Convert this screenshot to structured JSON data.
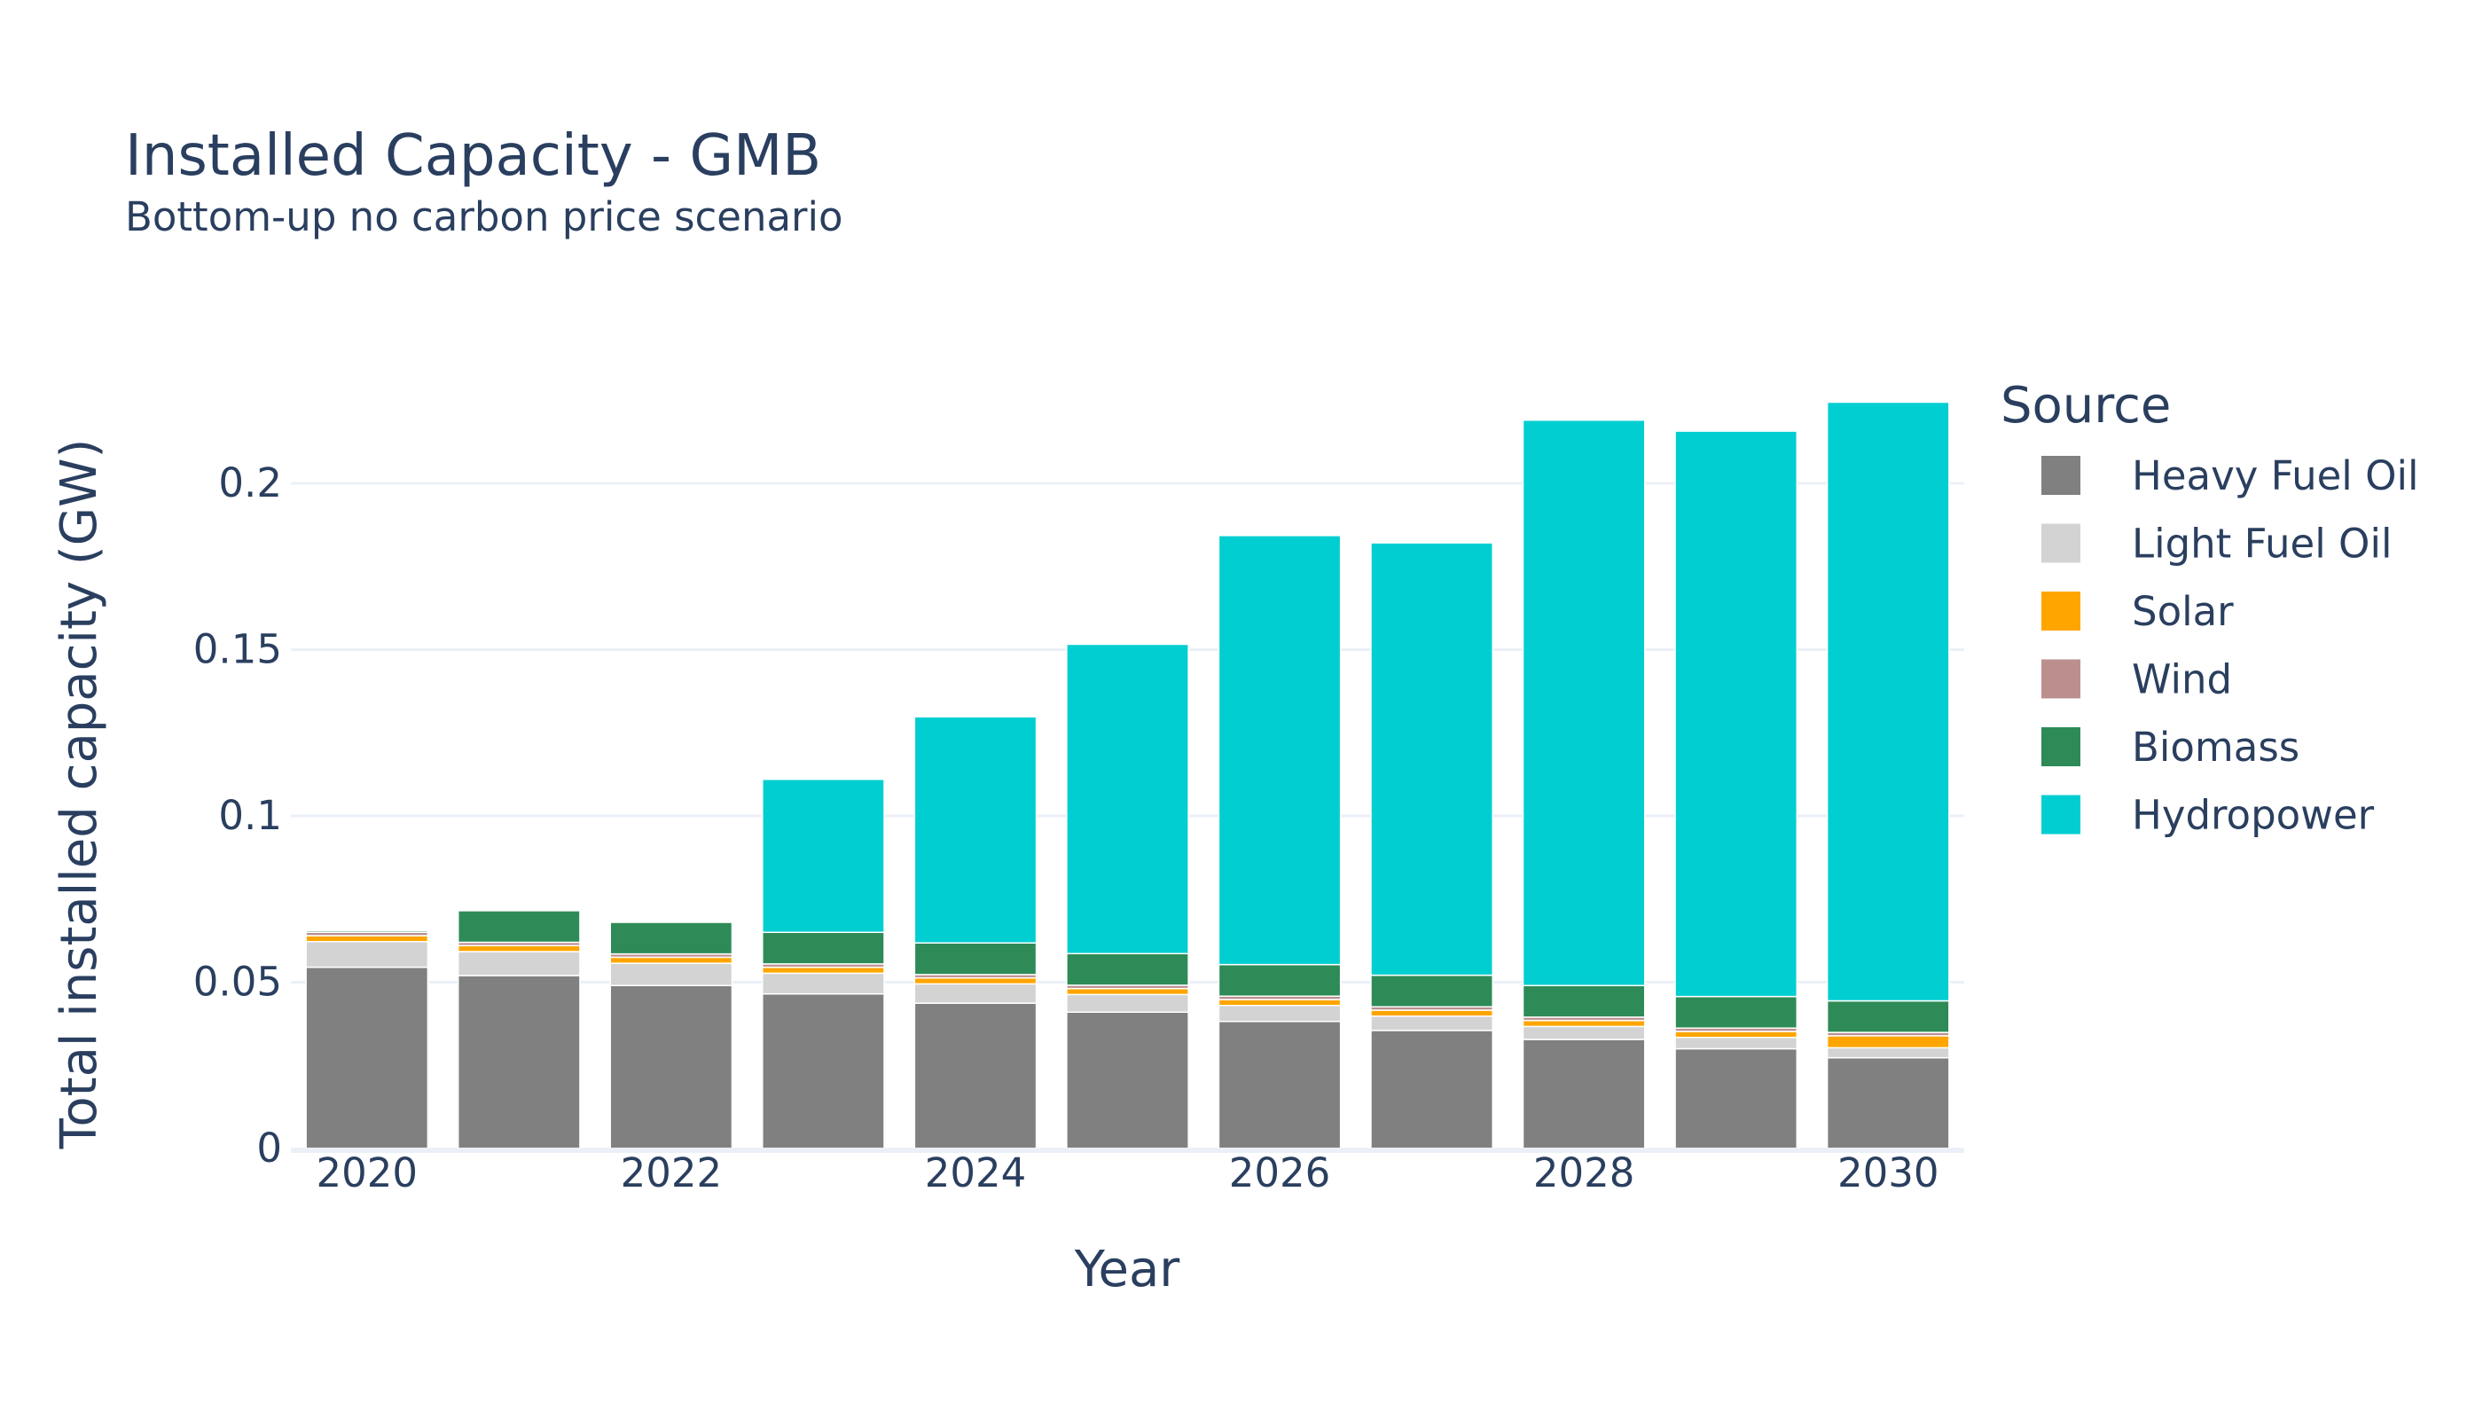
{
  "chart_data": {
    "type": "bar",
    "stacked": true,
    "title": "Installed Capacity - GMB",
    "subtitle": "Bottom-up no carbon price scenario",
    "xlabel": "Year",
    "ylabel": "Total installed capacity (GW)",
    "ylim": [
      0,
      0.232
    ],
    "grid": true,
    "legend_title": "Source",
    "legend_position": "right",
    "categories": [
      2020,
      2021,
      2022,
      2023,
      2024,
      2025,
      2026,
      2027,
      2028,
      2029,
      2030
    ],
    "x_tick_labels": [
      "2020",
      "2022",
      "2024",
      "2026",
      "2028",
      "2030"
    ],
    "y_ticks": [
      0,
      0.05,
      0.1,
      0.15,
      0.2
    ],
    "y_tick_labels": [
      "0",
      "0.05",
      "0.1",
      "0.15",
      "0.2"
    ],
    "series": [
      {
        "name": "Heavy Fuel Oil",
        "color": "#808080",
        "values": [
          0.0545,
          0.052,
          0.049,
          0.0465,
          0.0437,
          0.041,
          0.0382,
          0.0355,
          0.0328,
          0.03,
          0.0273
        ]
      },
      {
        "name": "Light Fuel Oil",
        "color": "#d3d3d3",
        "values": [
          0.0077,
          0.0072,
          0.0067,
          0.0062,
          0.0058,
          0.0053,
          0.0048,
          0.0043,
          0.0039,
          0.0034,
          0.003
        ]
      },
      {
        "name": "Solar",
        "color": "#ffa500",
        "values": [
          0.0018,
          0.0018,
          0.0018,
          0.0018,
          0.0018,
          0.0018,
          0.0018,
          0.0018,
          0.0018,
          0.0018,
          0.0036
        ]
      },
      {
        "name": "Wind",
        "color": "#bc8f8f",
        "values": [
          0.001,
          0.001,
          0.001,
          0.001,
          0.001,
          0.001,
          0.001,
          0.001,
          0.001,
          0.001,
          0.001
        ]
      },
      {
        "name": "Biomass",
        "color": "#2e8b57",
        "values": [
          0.0005,
          0.0095,
          0.0095,
          0.0095,
          0.0095,
          0.0095,
          0.0095,
          0.0095,
          0.0095,
          0.0095,
          0.0095
        ]
      },
      {
        "name": "Hydropower",
        "color": "#00ced1",
        "values": [
          0,
          0,
          0,
          0.046,
          0.068,
          0.093,
          0.129,
          0.13,
          0.17,
          0.17,
          0.18
        ]
      }
    ]
  }
}
